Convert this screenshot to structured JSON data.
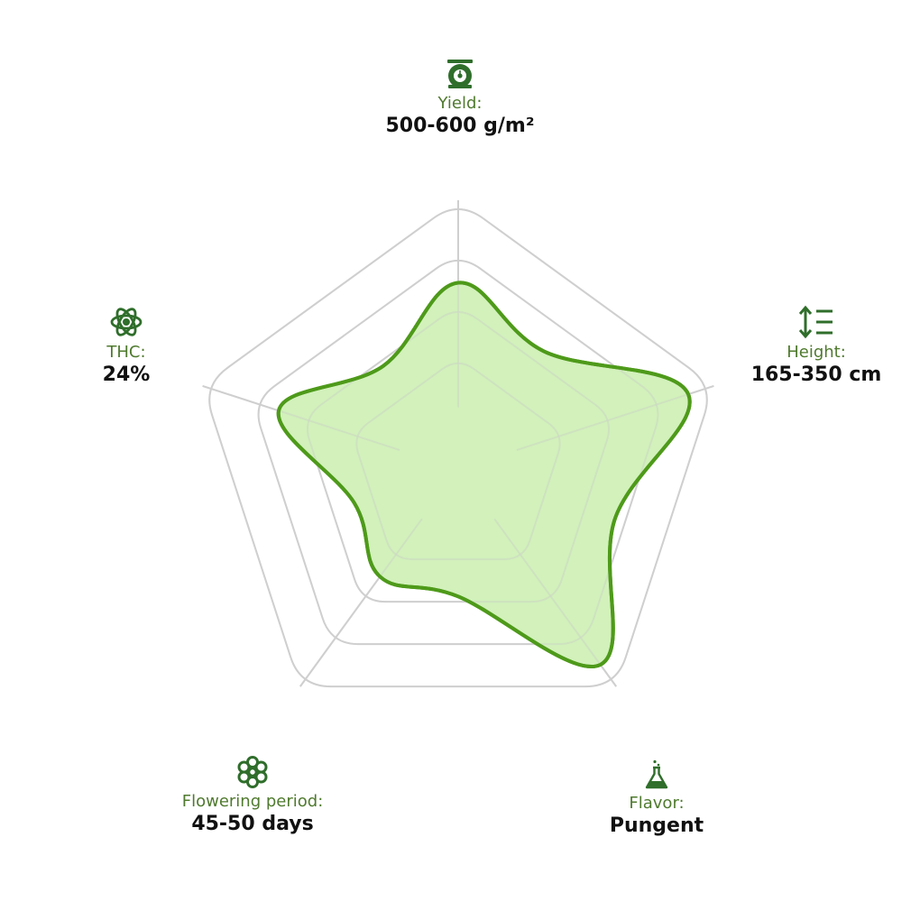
{
  "chart_data": {
    "type": "radar",
    "axes": [
      {
        "key": "yield",
        "label": "Yield:",
        "value_text": "500-600 g/m²",
        "icon": "scale-icon"
      },
      {
        "key": "height",
        "label": "Height:",
        "value_text": "165-350 cm",
        "icon": "height-arrows-icon"
      },
      {
        "key": "flavor",
        "label": "Flavor:",
        "value_text": "Pungent",
        "icon": "flask-icon"
      },
      {
        "key": "flowering",
        "label": "Flowering period:",
        "value_text": "45-50 days",
        "icon": "flower-icon"
      },
      {
        "key": "thc",
        "label": "THC:",
        "value_text": "24%",
        "icon": "molecule-icon"
      }
    ],
    "values": [
      0.77,
      1.0,
      1.0,
      0.55,
      0.78
    ],
    "range": [
      0,
      1
    ],
    "rings": 4,
    "grid": true,
    "colors": {
      "fill": "#cdf0b4",
      "stroke": "#4e9a1a",
      "grid": "#cfcfcf",
      "label": "#4f7a2e",
      "icon": "#2f6e2b",
      "value": "#111111"
    }
  }
}
